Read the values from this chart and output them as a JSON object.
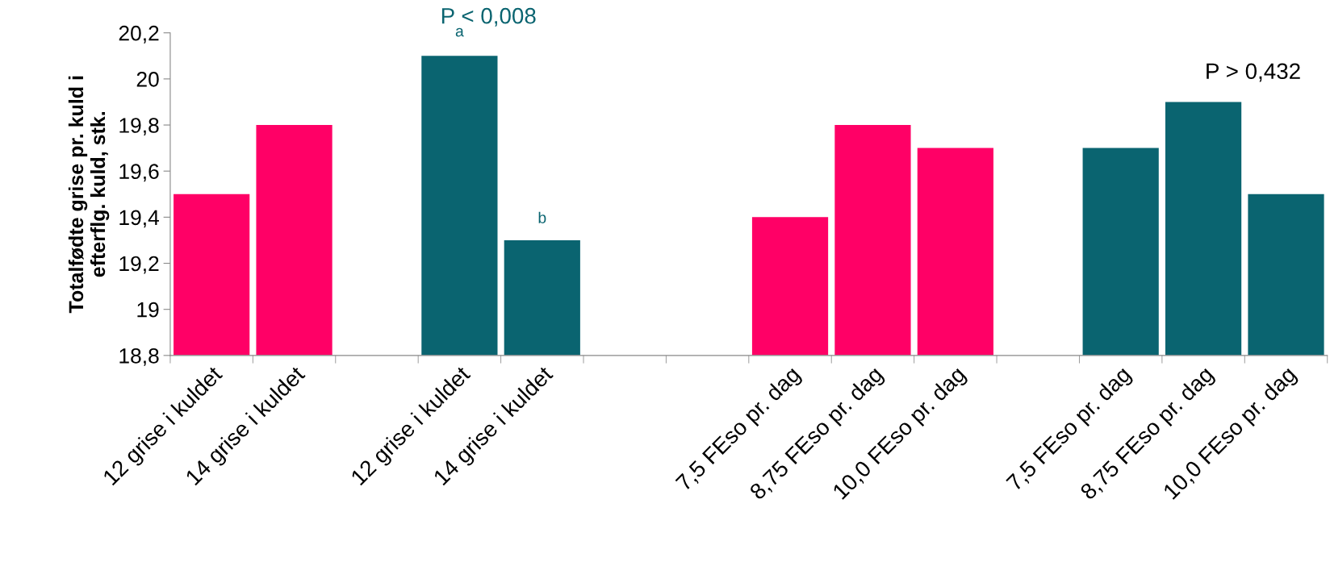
{
  "chart_data": {
    "type": "bar",
    "ylabel": "Totalfødte grise pr. kuld i\nefterflg. kuld, stk.",
    "categories": [
      "12 grise i kuldet",
      "14 grise i kuldet",
      null,
      "12 grise i kuldet",
      "14 grise i kuldet",
      null,
      null,
      "7,5 FEso pr. dag",
      "8,75 FEso pr. dag",
      "10,0 FEso pr. dag",
      null,
      "7,5 FEso pr. dag",
      "8,75 FEso pr. dag",
      "10,0 FEso pr. dag"
    ],
    "values": [
      19.5,
      19.8,
      null,
      20.1,
      19.3,
      null,
      null,
      19.4,
      19.8,
      19.7,
      null,
      19.7,
      19.9,
      19.5
    ],
    "colors": [
      "#ff0066",
      "#ff0066",
      "#ff0066",
      "#0a6470",
      "#0a6470",
      "#ff0066",
      "#ff0066",
      "#ff0066",
      "#ff0066",
      "#ff0066",
      "#0a6470",
      "#0a6470",
      "#0a6470",
      "#0a6470"
    ],
    "ylim": [
      18.8,
      20.2
    ],
    "yticks": [
      {
        "value": 18.8,
        "label": "18,8"
      },
      {
        "value": 19,
        "label": "19"
      },
      {
        "value": 19.2,
        "label": "19,2"
      },
      {
        "value": 19.4,
        "label": "19,4"
      },
      {
        "value": 19.6,
        "label": "19,6"
      },
      {
        "value": 19.8,
        "label": "19,8"
      },
      {
        "value": 20,
        "label": "20"
      },
      {
        "value": 20.2,
        "label": "20,2"
      }
    ],
    "grid": false,
    "legend": false,
    "annotations": [
      "P < 0,008",
      "P > 0,432",
      "a",
      "b"
    ]
  }
}
